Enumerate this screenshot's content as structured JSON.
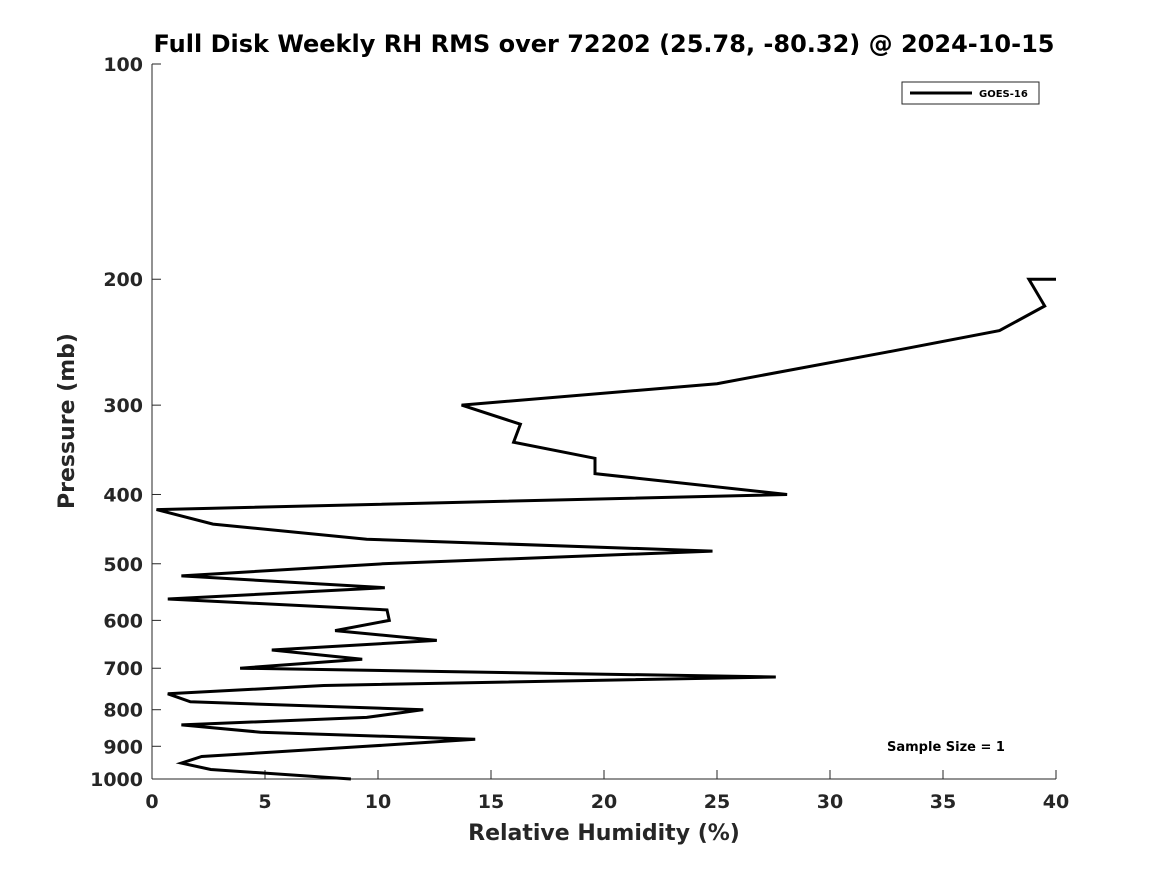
{
  "chart_data": {
    "type": "line",
    "title": "Full Disk Weekly RH RMS over 72202 (25.78, -80.32) @ 2024-10-15",
    "xlabel": "Relative Humidity (%)",
    "ylabel": "Pressure (mb)",
    "xlim": [
      0,
      40
    ],
    "ylim": [
      100,
      1000
    ],
    "yscale": "log",
    "yreversed": true,
    "x_ticks": [
      0,
      5,
      10,
      15,
      20,
      25,
      30,
      35,
      40
    ],
    "y_ticks": [
      100,
      200,
      300,
      400,
      500,
      600,
      700,
      800,
      900,
      1000
    ],
    "grid": false,
    "legend_position": "top-right",
    "annotation": "Sample Size = 1",
    "series": [
      {
        "name": "GOES-16",
        "color": "#000000",
        "points": [
          {
            "x": 40.0,
            "y": 200
          },
          {
            "x": 38.8,
            "y": 200
          },
          {
            "x": 39.5,
            "y": 218
          },
          {
            "x": 37.5,
            "y": 236
          },
          {
            "x": 32.5,
            "y": 253
          },
          {
            "x": 25.0,
            "y": 280
          },
          {
            "x": 13.7,
            "y": 300
          },
          {
            "x": 16.3,
            "y": 319
          },
          {
            "x": 16.0,
            "y": 338
          },
          {
            "x": 19.6,
            "y": 356
          },
          {
            "x": 19.6,
            "y": 374
          },
          {
            "x": 28.1,
            "y": 400
          },
          {
            "x": 0.2,
            "y": 420
          },
          {
            "x": 2.7,
            "y": 440
          },
          {
            "x": 9.5,
            "y": 462
          },
          {
            "x": 24.8,
            "y": 480
          },
          {
            "x": 10.2,
            "y": 500
          },
          {
            "x": 1.3,
            "y": 520
          },
          {
            "x": 10.3,
            "y": 540
          },
          {
            "x": 0.7,
            "y": 560
          },
          {
            "x": 10.4,
            "y": 580
          },
          {
            "x": 10.5,
            "y": 600
          },
          {
            "x": 8.1,
            "y": 620
          },
          {
            "x": 12.6,
            "y": 640
          },
          {
            "x": 5.3,
            "y": 660
          },
          {
            "x": 9.3,
            "y": 680
          },
          {
            "x": 3.9,
            "y": 700
          },
          {
            "x": 27.6,
            "y": 720
          },
          {
            "x": 7.6,
            "y": 740
          },
          {
            "x": 0.7,
            "y": 760
          },
          {
            "x": 1.7,
            "y": 780
          },
          {
            "x": 12.0,
            "y": 800
          },
          {
            "x": 9.5,
            "y": 820
          },
          {
            "x": 1.3,
            "y": 840
          },
          {
            "x": 4.8,
            "y": 860
          },
          {
            "x": 14.3,
            "y": 880
          },
          {
            "x": 9.5,
            "y": 900
          },
          {
            "x": 2.2,
            "y": 930
          },
          {
            "x": 1.3,
            "y": 950
          },
          {
            "x": 2.6,
            "y": 970
          },
          {
            "x": 8.8,
            "y": 1000
          }
        ]
      }
    ]
  }
}
